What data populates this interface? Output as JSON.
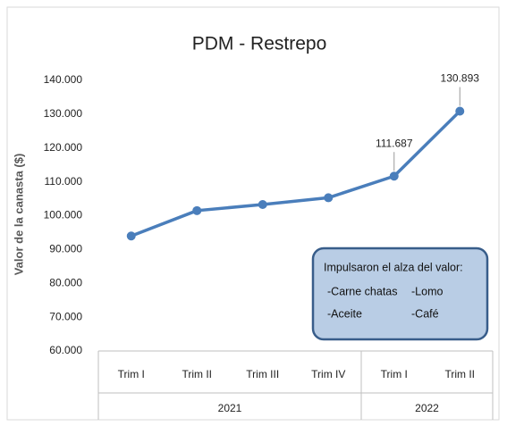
{
  "chart_data": {
    "type": "line",
    "title": "PDM - Restrepo",
    "y_label": "Valor de la canasta ($)",
    "groups": [
      {
        "label": "2021",
        "categories": [
          "Trim I",
          "Trim II",
          "Trim III",
          "Trim IV"
        ]
      },
      {
        "label": "2022",
        "categories": [
          "Trim I",
          "Trim II"
        ]
      }
    ],
    "values": [
      94000,
      101500,
      103300,
      105300,
      111687,
      130893
    ],
    "value_labels": [
      null,
      null,
      null,
      null,
      "111.687",
      "130.893"
    ],
    "color": "#4a7ebb",
    "ylim": [
      60000,
      140000
    ],
    "yticks": [
      {
        "value": 60000,
        "label": "60.000"
      },
      {
        "value": 70000,
        "label": "70.000"
      },
      {
        "value": 80000,
        "label": "80.000"
      },
      {
        "value": 90000,
        "label": "90.000"
      },
      {
        "value": 100000,
        "label": "100.000"
      },
      {
        "value": 110000,
        "label": "110.000"
      },
      {
        "value": 120000,
        "label": "120.000"
      },
      {
        "value": 130000,
        "label": "130.000"
      },
      {
        "value": 140000,
        "label": "140.000"
      }
    ],
    "grid": false,
    "annotation": {
      "heading": "Impulsaron el alza del valor:",
      "items": [
        "-Carne chatas",
        "-Lomo",
        "-Aceite",
        "-Café"
      ]
    }
  }
}
